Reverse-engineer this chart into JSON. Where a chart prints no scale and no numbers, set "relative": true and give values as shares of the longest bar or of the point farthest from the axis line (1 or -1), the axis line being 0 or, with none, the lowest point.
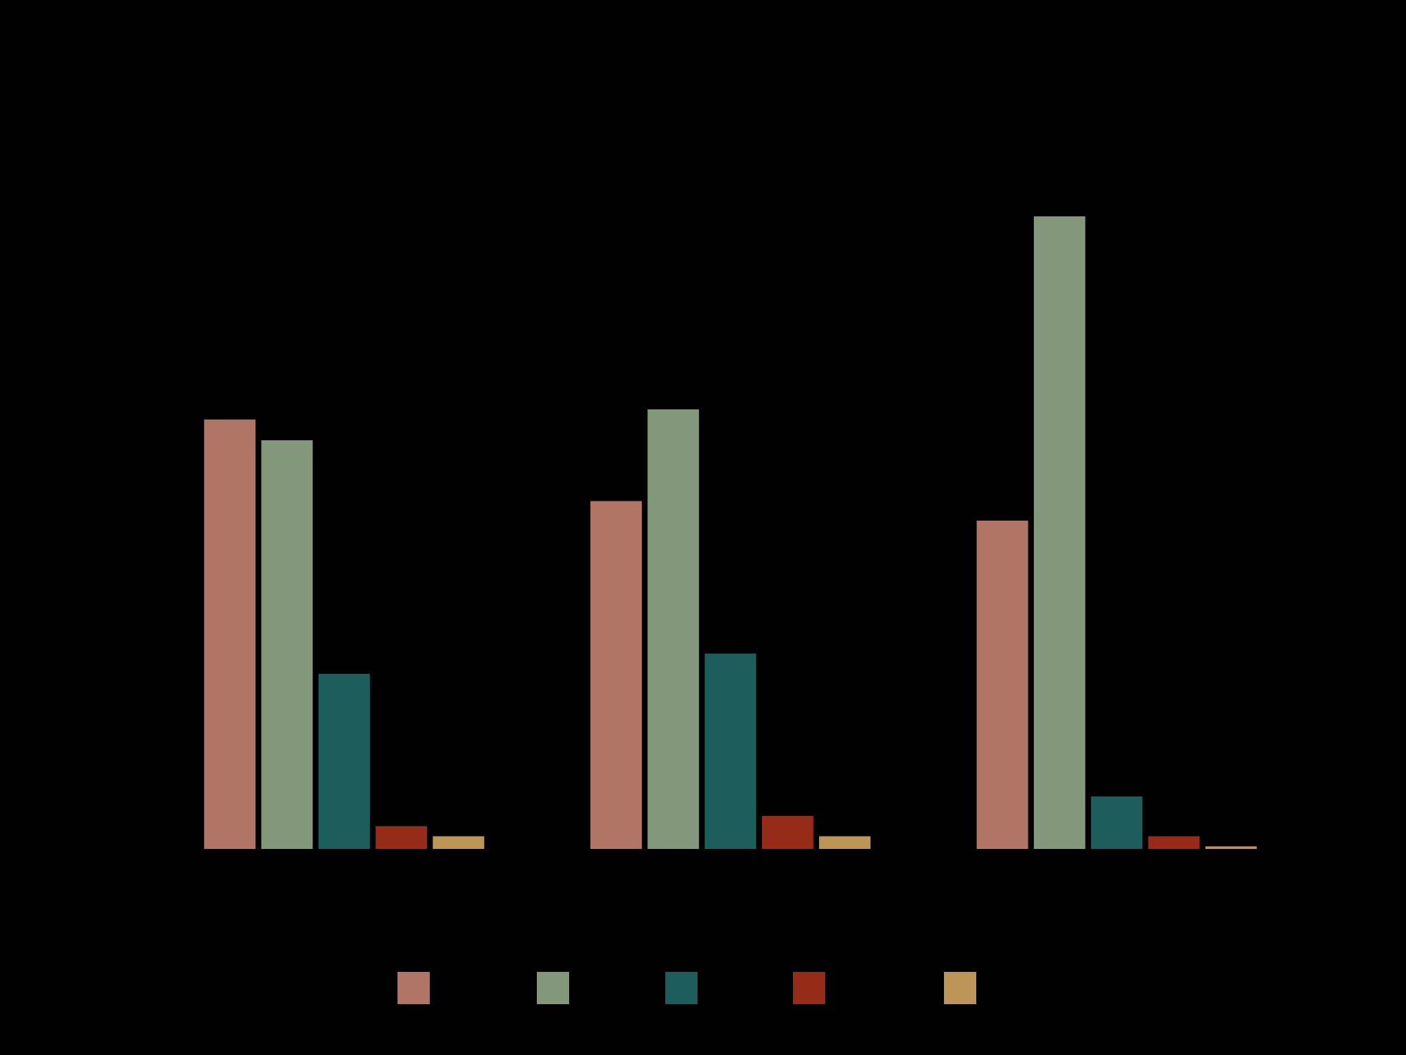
{
  "chart_data": {
    "type": "bar",
    "relative": true,
    "categories": [
      null,
      null,
      null
    ],
    "series": [
      {
        "color": "#b07565",
        "values": [
          0.679,
          0.55,
          0.519
        ]
      },
      {
        "color": "#83977a",
        "values": [
          0.646,
          0.695,
          1.0
        ]
      },
      {
        "color": "#1b5e5c",
        "values": [
          0.277,
          0.309,
          0.083
        ]
      },
      {
        "color": "#972b1a",
        "values": [
          0.036,
          0.052,
          0.02
        ]
      },
      {
        "color": "#bc9455",
        "values": [
          0.02,
          0.02,
          0.004
        ]
      }
    ]
  }
}
